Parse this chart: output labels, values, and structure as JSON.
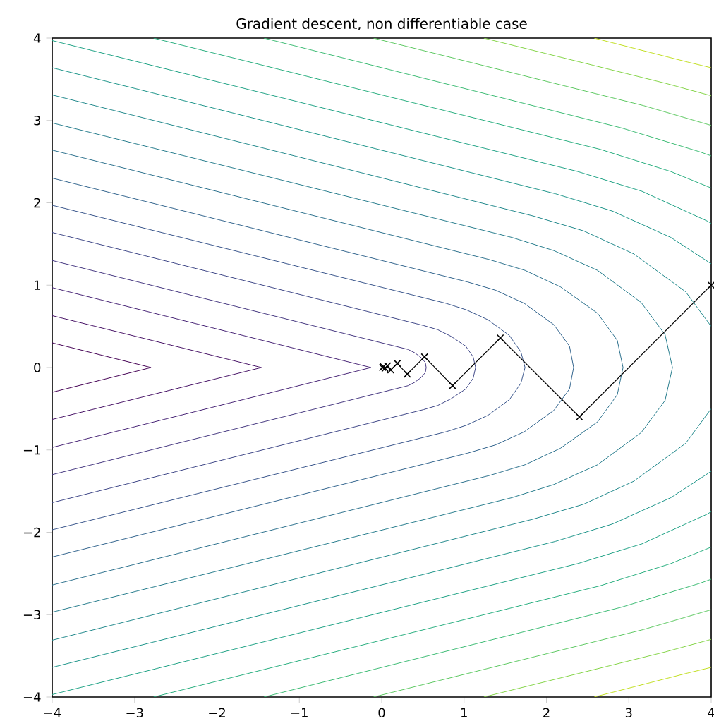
{
  "chart_data": {
    "type": "line",
    "title": "Gradient descent, non differentiable case",
    "xlim": [
      -4,
      4
    ],
    "ylim": [
      -4,
      4
    ],
    "xticks": [
      {
        "value": -4,
        "label": "−4"
      },
      {
        "value": -3,
        "label": "−3"
      },
      {
        "value": -2,
        "label": "−2"
      },
      {
        "value": -1,
        "label": "−1"
      },
      {
        "value": 0,
        "label": "0"
      },
      {
        "value": 1,
        "label": "1"
      },
      {
        "value": 2,
        "label": "2"
      },
      {
        "value": 3,
        "label": "3"
      },
      {
        "value": 4,
        "label": "4"
      }
    ],
    "yticks": [
      {
        "value": -4,
        "label": "−4"
      },
      {
        "value": -3,
        "label": "−3"
      },
      {
        "value": -2,
        "label": "−2"
      },
      {
        "value": -1,
        "label": "−1"
      },
      {
        "value": 0,
        "label": "0"
      },
      {
        "value": 1,
        "label": "1"
      },
      {
        "value": 2,
        "label": "2"
      },
      {
        "value": 3,
        "label": "3"
      },
      {
        "value": 4,
        "label": "4"
      }
    ],
    "series": [
      {
        "color": "#440154",
        "marker": "none",
        "x": [
          -4,
          -2.8,
          -4
        ],
        "values": [
          0.3,
          0,
          -0.3
        ]
      },
      {
        "color": "#481467",
        "marker": "none",
        "x": [
          -4,
          -1.46,
          -4
        ],
        "values": [
          0.63,
          0,
          -0.63
        ]
      },
      {
        "color": "#482576",
        "marker": "none",
        "x": [
          -4,
          -0.13,
          -4
        ],
        "values": [
          0.97,
          0,
          -0.97
        ]
      },
      {
        "color": "#453781",
        "marker": "none",
        "x": [
          -4,
          0.24,
          0.32,
          0.4,
          0.48,
          0.53,
          0.54,
          0.53,
          0.48,
          0.4,
          0.32,
          0.24,
          -4
        ],
        "values": [
          1.3,
          0.24,
          0.22,
          0.18,
          0.12,
          0.06,
          0,
          -0.06,
          -0.12,
          -0.18,
          -0.22,
          -0.24,
          -1.3
        ]
      },
      {
        "color": "#3f4788",
        "marker": "none",
        "x": [
          -4,
          0.51,
          0.68,
          0.84,
          1.02,
          1.11,
          1.14,
          1.11,
          1.02,
          0.84,
          0.68,
          0.51,
          -4
        ],
        "values": [
          1.64,
          0.51,
          0.46,
          0.38,
          0.26,
          0.13,
          0,
          -0.13,
          -0.26,
          -0.38,
          -0.46,
          -0.51,
          -1.64
        ]
      },
      {
        "color": "#39558c",
        "marker": "none",
        "x": [
          -4,
          0.78,
          1.03,
          1.29,
          1.55,
          1.69,
          1.74,
          1.69,
          1.55,
          1.29,
          1.03,
          0.78,
          -4
        ],
        "values": [
          1.97,
          0.78,
          0.7,
          0.58,
          0.39,
          0.19,
          0,
          -0.19,
          -0.39,
          -0.58,
          -0.7,
          -0.78,
          -1.97
        ]
      },
      {
        "color": "#32648e",
        "marker": "none",
        "x": [
          -4,
          1.04,
          1.38,
          1.73,
          2.09,
          2.28,
          2.33,
          2.28,
          2.09,
          1.73,
          1.38,
          1.04,
          -4
        ],
        "values": [
          2.3,
          1.04,
          0.94,
          0.78,
          0.52,
          0.26,
          0,
          -0.26,
          -0.52,
          -0.78,
          -0.94,
          -1.04,
          -2.3
        ]
      },
      {
        "color": "#2d718e",
        "marker": "none",
        "x": [
          -4,
          1.31,
          1.74,
          2.17,
          2.62,
          2.86,
          2.93,
          2.86,
          2.62,
          2.17,
          1.74,
          1.31,
          -4
        ],
        "values": [
          2.64,
          1.31,
          1.18,
          0.98,
          0.66,
          0.33,
          0,
          -0.33,
          -0.66,
          -0.98,
          -1.18,
          -1.31,
          -2.64
        ]
      },
      {
        "color": "#287d8e",
        "marker": "none",
        "x": [
          -4,
          1.58,
          2.09,
          2.62,
          3.15,
          3.44,
          3.53,
          3.44,
          3.15,
          2.62,
          2.09,
          1.58,
          -4
        ],
        "values": [
          2.97,
          1.58,
          1.42,
          1.18,
          0.79,
          0.4,
          0,
          -0.4,
          -0.79,
          -1.18,
          -1.42,
          -1.58,
          -2.97
        ]
      },
      {
        "color": "#238a8d",
        "marker": "none",
        "x": [
          -4,
          1.84,
          2.45,
          3.06,
          3.69,
          4
        ],
        "values": [
          3.31,
          1.84,
          1.66,
          1.38,
          0.92,
          0.5
        ]
      },
      {
        "color": "#238a8d",
        "marker": "none",
        "x": [
          4,
          3.69,
          3.06,
          2.45,
          1.84,
          -4
        ],
        "values": [
          -0.5,
          -0.92,
          -1.38,
          -1.66,
          -1.84,
          -3.31
        ]
      },
      {
        "color": "#1f968b",
        "marker": "none",
        "x": [
          -4,
          2.11,
          2.8,
          3.51,
          4
        ],
        "values": [
          3.64,
          2.11,
          1.9,
          1.58,
          1.26
        ]
      },
      {
        "color": "#1f968b",
        "marker": "none",
        "x": [
          4,
          3.51,
          2.8,
          2.11,
          -4
        ],
        "values": [
          -1.26,
          -1.58,
          -1.9,
          -2.11,
          -3.64
        ]
      },
      {
        "color": "#20a386",
        "marker": "none",
        "x": [
          -4,
          2.38,
          3.16,
          3.95,
          4
        ],
        "values": [
          3.97,
          2.38,
          2.14,
          1.78,
          1.75
        ]
      },
      {
        "color": "#20a386",
        "marker": "none",
        "x": [
          4,
          3.95,
          3.16,
          2.38,
          -4
        ],
        "values": [
          -1.75,
          -1.78,
          -2.14,
          -2.38,
          -3.97
        ]
      },
      {
        "color": "#29af7f",
        "marker": "none",
        "x": [
          -2.77,
          2.65,
          3.51,
          4
        ],
        "values": [
          4,
          2.65,
          2.38,
          2.18
        ]
      },
      {
        "color": "#29af7f",
        "marker": "none",
        "x": [
          4,
          3.51,
          2.65,
          -2.77
        ],
        "values": [
          -2.18,
          -2.38,
          -2.65,
          -4
        ]
      },
      {
        "color": "#3dbc74",
        "marker": "none",
        "x": [
          -1.43,
          2.91,
          3.86,
          4
        ],
        "values": [
          4,
          2.91,
          2.62,
          2.57
        ]
      },
      {
        "color": "#3dbc74",
        "marker": "none",
        "x": [
          4,
          3.86,
          2.91,
          -1.43
        ],
        "values": [
          -2.57,
          -2.62,
          -2.91,
          -4
        ]
      },
      {
        "color": "#5ec962",
        "marker": "none",
        "x": [
          -0.1,
          3.18,
          4
        ],
        "values": [
          4,
          3.18,
          2.94
        ]
      },
      {
        "color": "#5ec962",
        "marker": "none",
        "x": [
          4,
          3.18,
          -0.1
        ],
        "values": [
          -2.94,
          -3.18,
          -4
        ]
      },
      {
        "color": "#86d549",
        "marker": "none",
        "x": [
          1.24,
          3.45,
          4
        ],
        "values": [
          4,
          3.45,
          3.3
        ]
      },
      {
        "color": "#86d549",
        "marker": "none",
        "x": [
          4,
          3.45,
          1.24
        ],
        "values": [
          -3.3,
          -3.45,
          -4
        ]
      },
      {
        "color": "#c2df23",
        "marker": "none",
        "x": [
          2.58,
          3.71,
          4
        ],
        "values": [
          4,
          3.71,
          3.64
        ]
      },
      {
        "color": "#c2df23",
        "marker": "none",
        "x": [
          4,
          3.71,
          2.58
        ],
        "values": [
          -3.64,
          -3.71,
          -4
        ]
      },
      {
        "color": "#000000",
        "marker": "cross",
        "x": [
          4,
          2.4,
          1.44,
          0.86,
          0.52,
          0.31,
          0.19,
          0.11,
          0.07,
          0.04,
          0.02,
          0.01
        ],
        "values": [
          1,
          -0.6,
          0.36,
          -0.22,
          0.13,
          -0.08,
          0.05,
          -0.03,
          0.02,
          -0.01,
          0.01,
          0
        ]
      }
    ]
  }
}
